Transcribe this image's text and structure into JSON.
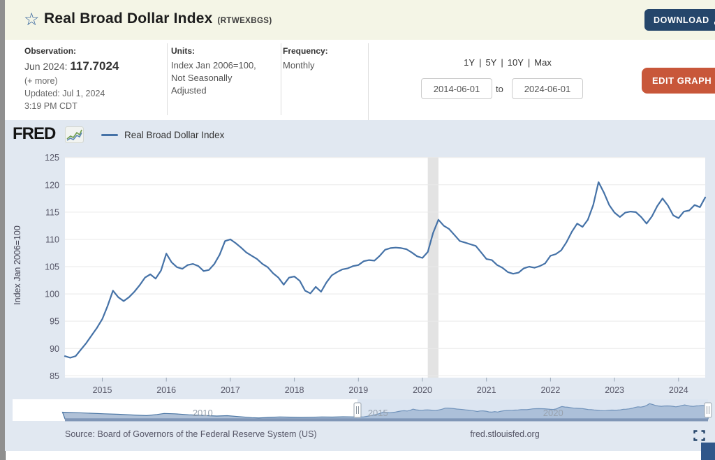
{
  "header": {
    "title": "Real Broad Dollar Index",
    "code": "(RTWEXBGS)",
    "download_label": "DOWNLOAD"
  },
  "info": {
    "observation": {
      "label": "Observation:",
      "date_prefix": "Jun 2024: ",
      "value": "117.7024",
      "more": "(+ more)",
      "updated": "Updated: Jul 1, 2024",
      "updated_time": "3:19 PM CDT"
    },
    "units": {
      "label": "Units:",
      "line1": "Index Jan 2006=100,",
      "line2": "Not Seasonally",
      "line3": "Adjusted"
    },
    "frequency": {
      "label": "Frequency:",
      "value": "Monthly"
    },
    "range": {
      "links": [
        "1Y",
        "5Y",
        "10Y",
        "Max"
      ],
      "sep": "|",
      "start_date": "2014-06-01",
      "to_label": "to",
      "end_date": "2024-06-01"
    },
    "edit_graph_label": "EDIT GRAPH"
  },
  "chart": {
    "logo_text": "FRED",
    "logo_chart_icon": "line-chart-icon"
  },
  "footer": {
    "source": "Source: Board of Governors of the Federal Reserve System (US)",
    "site": "fred.stlouisfed.org",
    "fullscreen_icon": "fullscreen-icon"
  },
  "chart_data": {
    "type": "line",
    "title": "Real Broad Dollar Index",
    "ylabel": "Index Jan 2006=100",
    "freq": "monthly",
    "x_start": "2014-06",
    "x_end": "2024-06",
    "ylim": [
      85,
      125
    ],
    "yticks": [
      125,
      120,
      115,
      110,
      105,
      100,
      95,
      90,
      85
    ],
    "xticks": [
      2015,
      2016,
      2017,
      2018,
      2019,
      2020,
      2021,
      2022,
      2023,
      2024
    ],
    "grid": true,
    "line_color": "#4572a7",
    "recession_band": {
      "from": "2020-02",
      "to": "2020-04",
      "color": "#e3e3e3"
    },
    "legend_position": "top",
    "series": [
      {
        "name": "Real Broad Dollar Index",
        "values": [
          88.6,
          88.3,
          88.6,
          89.8,
          91.0,
          92.4,
          93.8,
          95.4,
          97.8,
          100.6,
          99.4,
          98.7,
          99.4,
          100.4,
          101.6,
          103.0,
          103.6,
          102.8,
          104.3,
          107.4,
          105.8,
          104.9,
          104.6,
          105.3,
          105.5,
          105.1,
          104.2,
          104.4,
          105.5,
          107.2,
          109.7,
          110.0,
          109.3,
          108.5,
          107.6,
          107.0,
          106.4,
          105.5,
          104.9,
          103.8,
          103.0,
          101.7,
          103.0,
          103.2,
          102.4,
          100.6,
          100.1,
          101.3,
          100.4,
          102.1,
          103.4,
          104.0,
          104.5,
          104.7,
          105.1,
          105.3,
          106.0,
          106.2,
          106.1,
          107.0,
          108.1,
          108.4,
          108.5,
          108.4,
          108.2,
          107.6,
          106.9,
          106.6,
          107.7,
          111.2,
          113.6,
          112.5,
          111.9,
          110.8,
          109.7,
          109.4,
          109.1,
          108.8,
          107.6,
          106.4,
          106.2,
          105.3,
          104.8,
          104.0,
          103.7,
          103.9,
          104.7,
          105.0,
          104.8,
          105.1,
          105.6,
          107.0,
          107.3,
          108.0,
          109.5,
          111.4,
          112.9,
          112.3,
          113.6,
          116.3,
          120.5,
          118.6,
          116.3,
          114.9,
          114.1,
          114.9,
          115.1,
          115.0,
          114.1,
          112.9,
          114.2,
          116.1,
          117.5,
          116.2,
          114.4,
          113.9,
          115.1,
          115.3,
          116.3,
          115.9,
          117.7
        ]
      }
    ],
    "mini_chart": {
      "labels": [
        2010,
        2015,
        2020
      ],
      "selected_range_years": [
        2014.417,
        2024.417
      ],
      "history": [
        [
          2006.0,
          100.0
        ],
        [
          2006.4,
          98.8
        ],
        [
          2006.8,
          97.5
        ],
        [
          2007.2,
          96.2
        ],
        [
          2007.6,
          95.0
        ],
        [
          2008.0,
          93.2
        ],
        [
          2008.4,
          91.8
        ],
        [
          2008.7,
          94.5
        ],
        [
          2008.9,
          97.0
        ],
        [
          2009.2,
          96.2
        ],
        [
          2009.6,
          93.8
        ],
        [
          2010.0,
          92.2
        ],
        [
          2010.4,
          90.8
        ],
        [
          2010.7,
          91.6
        ],
        [
          2011.0,
          89.6
        ],
        [
          2011.4,
          86.8
        ],
        [
          2011.6,
          86.2
        ],
        [
          2011.9,
          87.6
        ],
        [
          2012.2,
          88.6
        ],
        [
          2012.5,
          88.0
        ],
        [
          2012.8,
          87.4
        ],
        [
          2013.1,
          87.8
        ],
        [
          2013.4,
          88.6
        ],
        [
          2013.7,
          88.2
        ],
        [
          2014.0,
          88.9
        ],
        [
          2014.2,
          88.7
        ],
        [
          2014.33,
          88.6
        ]
      ]
    }
  }
}
